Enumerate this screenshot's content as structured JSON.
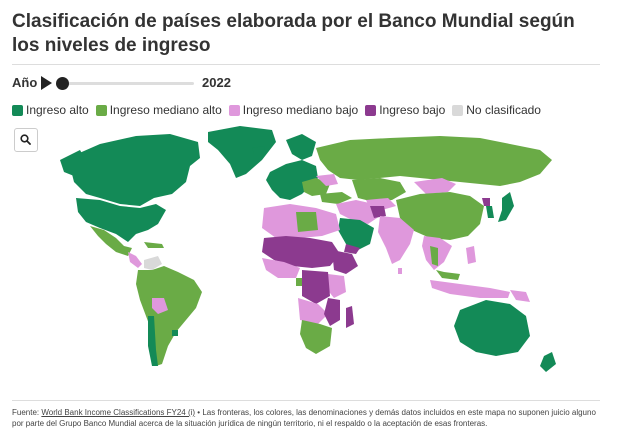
{
  "title": "Clasificación de países elaborada por el Banco Mundial según los niveles de ingreso",
  "slider": {
    "label": "Año",
    "value": "2022",
    "position": 0.0
  },
  "legend": [
    {
      "label": "Ingreso alto",
      "color": "#138a57"
    },
    {
      "label": "Ingreso mediano alto",
      "color": "#6aab46"
    },
    {
      "label": "Ingreso mediano bajo",
      "color": "#df98dc"
    },
    {
      "label": "Ingreso bajo",
      "color": "#8c3a8f"
    },
    {
      "label": "No clasificado",
      "color": "#d9d9d9"
    }
  ],
  "search_icon": "search-icon",
  "footer": {
    "source_prefix": "Fuente:",
    "source_link": "World Bank Income Classifications FY24 (i)",
    "disclaimer": "• Las fronteras, los colores, las denominaciones y demás datos incluidos en este mapa no suponen juicio alguno por parte del Grupo Banco Mundial acerca de la situación jurídica de ningún territorio, ni el respaldo o la aceptación de esas fronteras."
  }
}
